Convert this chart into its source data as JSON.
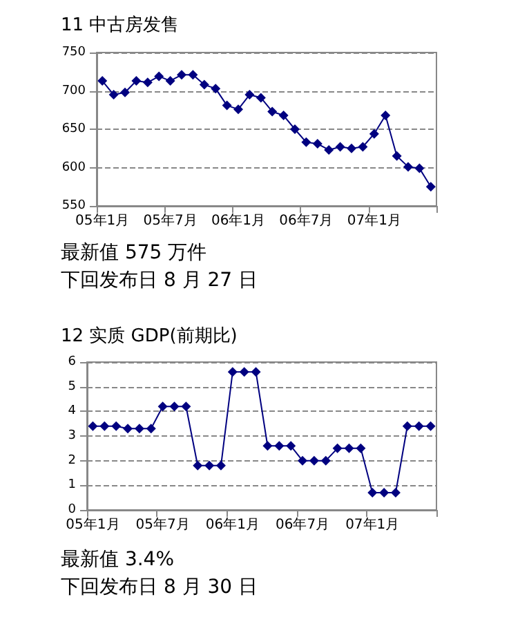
{
  "chart_data": [
    {
      "type": "line",
      "title": "11 中古房发售",
      "annotations": [
        "最新值 575 万件",
        "下回发布日 8 月 27 日"
      ],
      "categories": [
        "05年1月",
        null,
        null,
        null,
        null,
        null,
        "05年7月",
        null,
        null,
        null,
        null,
        null,
        "06年1月",
        null,
        null,
        null,
        null,
        null,
        "06年7月",
        null,
        null,
        null,
        null,
        null,
        "07年1月",
        null,
        null,
        null,
        null,
        null
      ],
      "values": [
        713,
        695,
        698,
        713,
        711,
        719,
        713,
        721,
        721,
        708,
        703,
        681,
        676,
        695,
        691,
        673,
        668,
        650,
        633,
        631,
        623,
        627,
        625,
        627,
        644,
        668,
        615,
        601,
        599,
        575
      ],
      "color": "#000080",
      "ylim": [
        550,
        750
      ],
      "yticks": [
        550,
        600,
        650,
        700,
        750
      ],
      "grid": "y",
      "marker": "diamond"
    },
    {
      "type": "line",
      "title": "12 实质 GDP(前期比)",
      "annotations": [
        "最新值 3.4%",
        "下回发布日 8 月 30 日"
      ],
      "categories": [
        "05年1月",
        null,
        null,
        null,
        null,
        null,
        "05年7月",
        null,
        null,
        null,
        null,
        null,
        "06年1月",
        null,
        null,
        null,
        null,
        null,
        "06年7月",
        null,
        null,
        null,
        null,
        null,
        "07年1月",
        null,
        null,
        null,
        null,
        null
      ],
      "values": [
        3.4,
        3.4,
        3.4,
        3.3,
        3.3,
        3.3,
        4.2,
        4.2,
        4.2,
        1.8,
        1.8,
        1.8,
        5.6,
        5.6,
        5.6,
        2.6,
        2.6,
        2.6,
        2.0,
        2.0,
        2.0,
        2.5,
        2.5,
        2.5,
        0.7,
        0.7,
        0.7,
        3.4,
        3.4,
        3.4
      ],
      "color": "#000080",
      "ylim": [
        0,
        6
      ],
      "yticks": [
        0,
        1,
        2,
        3,
        4,
        5,
        6
      ],
      "grid": "y",
      "marker": "diamond"
    }
  ]
}
